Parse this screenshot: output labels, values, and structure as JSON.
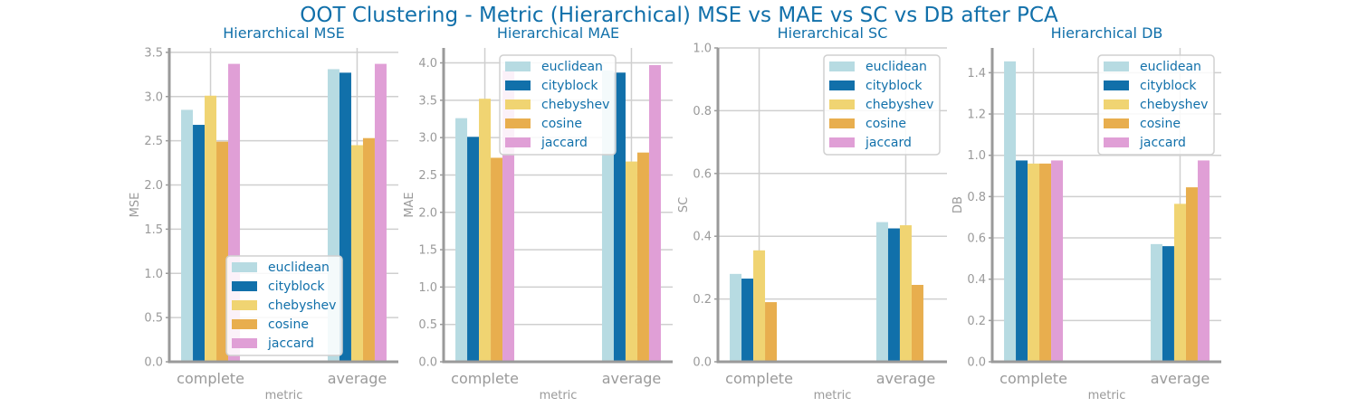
{
  "figure": {
    "title": "OOT Clustering - Metric (Hierarchical) MSE vs MAE vs SC vs DB after PCA"
  },
  "style": {
    "series_colors": [
      "#b7dbe2",
      "#1170aa",
      "#f0d472",
      "#e8ae4e",
      "#e09fd6"
    ],
    "title_color": "#1170aa",
    "axis_color": "#9a9a9a",
    "grid_color": "#cfcfcf"
  },
  "chart_data": [
    {
      "type": "bar",
      "title": "Hierarchical MSE",
      "xlabel": "metric",
      "ylabel": "MSE",
      "categories": [
        "complete",
        "average"
      ],
      "ylim": [
        0,
        3.55
      ],
      "yticks": [
        0.0,
        0.5,
        1.0,
        1.5,
        2.0,
        2.5,
        3.0,
        3.5
      ],
      "tick_decimals": 1,
      "grid": true,
      "legend": "lower-center",
      "series": [
        {
          "name": "euclidean",
          "values": [
            2.85,
            3.31
          ]
        },
        {
          "name": "cityblock",
          "values": [
            2.68,
            3.27
          ]
        },
        {
          "name": "chebyshev",
          "values": [
            3.01,
            2.45
          ]
        },
        {
          "name": "cosine",
          "values": [
            2.49,
            2.53
          ]
        },
        {
          "name": "jaccard",
          "values": [
            3.37,
            3.37
          ]
        }
      ]
    },
    {
      "type": "bar",
      "title": "Hierarchical MAE",
      "xlabel": "metric",
      "ylabel": "MAE",
      "categories": [
        "complete",
        "average"
      ],
      "ylim": [
        0,
        4.2
      ],
      "yticks": [
        0.0,
        0.5,
        1.0,
        1.5,
        2.0,
        2.5,
        3.0,
        3.5,
        4.0
      ],
      "tick_decimals": 1,
      "grid": true,
      "legend": "top-center",
      "series": [
        {
          "name": "euclidean",
          "values": [
            3.26,
            3.9
          ]
        },
        {
          "name": "cityblock",
          "values": [
            3.01,
            3.87
          ]
        },
        {
          "name": "chebyshev",
          "values": [
            3.52,
            2.68
          ]
        },
        {
          "name": "cosine",
          "values": [
            2.73,
            2.8
          ]
        },
        {
          "name": "jaccard",
          "values": [
            3.9,
            3.97
          ]
        }
      ]
    },
    {
      "type": "bar",
      "title": "Hierarchical SC",
      "xlabel": "metric",
      "ylabel": "SC",
      "categories": [
        "complete",
        "average"
      ],
      "ylim": [
        0,
        1.0
      ],
      "yticks": [
        0.0,
        0.2,
        0.4,
        0.6,
        0.8,
        1.0
      ],
      "tick_decimals": 1,
      "grid": true,
      "legend": "top-right",
      "series": [
        {
          "name": "euclidean",
          "values": [
            0.28,
            0.445
          ]
        },
        {
          "name": "cityblock",
          "values": [
            0.265,
            0.425
          ]
        },
        {
          "name": "chebyshev",
          "values": [
            0.355,
            0.435
          ]
        },
        {
          "name": "cosine",
          "values": [
            0.19,
            0.245
          ]
        },
        {
          "name": "jaccard",
          "values": [
            0,
            0
          ]
        }
      ]
    },
    {
      "type": "bar",
      "title": "Hierarchical DB",
      "xlabel": "metric",
      "ylabel": "DB",
      "categories": [
        "complete",
        "average"
      ],
      "ylim": [
        0,
        1.52
      ],
      "yticks": [
        0.0,
        0.2,
        0.4,
        0.6,
        0.8,
        1.0,
        1.2,
        1.4
      ],
      "tick_decimals": 1,
      "grid": true,
      "legend": "top-right",
      "series": [
        {
          "name": "euclidean",
          "values": [
            1.455,
            0.57
          ]
        },
        {
          "name": "cityblock",
          "values": [
            0.975,
            0.56
          ]
        },
        {
          "name": "chebyshev",
          "values": [
            0.96,
            0.765
          ]
        },
        {
          "name": "cosine",
          "values": [
            0.96,
            0.845
          ]
        },
        {
          "name": "jaccard",
          "values": [
            0.975,
            0.975
          ]
        }
      ]
    }
  ]
}
